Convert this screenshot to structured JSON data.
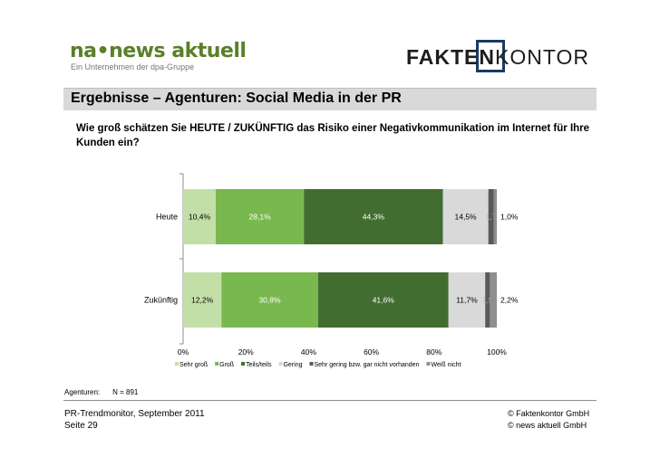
{
  "header": {
    "logo_left_brand": "na",
    "logo_left_dot": "•",
    "logo_left_name": "news aktuell",
    "logo_left_tagline": "Ein Unternehmen der dpa-Gruppe",
    "logo_right_bold": "FAKTEN",
    "logo_right_light": "KONTOR"
  },
  "slide": {
    "title": "Ergebnisse – Agenturen: Social Media in der PR",
    "question": "Wie groß schätzen Sie HEUTE / ZUKÜNFTIG das Risiko einer Negativkommunikation im Internet für Ihre Kunden ein?"
  },
  "note": {
    "group_label": "Agenturen:",
    "sample": "N = 891"
  },
  "footer": {
    "left_line1": "PR-Trendmonitor, September 2011",
    "left_line2": "Seite 29",
    "right_line1": "© Faktenkontor GmbH",
    "right_line2": "© news aktuell GmbH"
  },
  "colors": {
    "sehr_gross": "#c3dfa8",
    "gross": "#79b84f",
    "teils": "#426d30",
    "gering": "#d9d9d9",
    "sehr_gering": "#595959",
    "weiss_nicht": "#8f8f8f"
  },
  "chart_data": {
    "type": "bar",
    "orientation": "horizontal",
    "stacked": true,
    "percent_stacked": true,
    "categories": [
      "Heute",
      "Zukünftig"
    ],
    "series": [
      {
        "name": "Sehr groß",
        "values": [
          10.4,
          12.2
        ],
        "labels": [
          "10,4%",
          "12,2%"
        ]
      },
      {
        "name": "Groß",
        "values": [
          28.1,
          30.8
        ],
        "labels": [
          "28,1%",
          "30,8%"
        ]
      },
      {
        "name": "Teils/teils",
        "values": [
          44.3,
          41.6
        ],
        "labels": [
          "44,3%",
          "41,6%"
        ]
      },
      {
        "name": "Gering",
        "values": [
          14.5,
          11.7
        ],
        "labels": [
          "14,5%",
          "11,7%"
        ]
      },
      {
        "name": "Sehr gering bzw. gar nicht vorhanden",
        "values": [
          1.7,
          1.5
        ],
        "labels": [
          "1,7",
          "1,5"
        ]
      },
      {
        "name": "Weiß nicht",
        "values": [
          1.0,
          2.2
        ],
        "labels": [
          "1,0%",
          "2,2%"
        ]
      }
    ],
    "x_ticks": [
      "0%",
      "20%",
      "40%",
      "60%",
      "80%",
      "100%"
    ],
    "xlim": [
      0,
      100
    ],
    "legend_position": "bottom",
    "grid": false
  }
}
